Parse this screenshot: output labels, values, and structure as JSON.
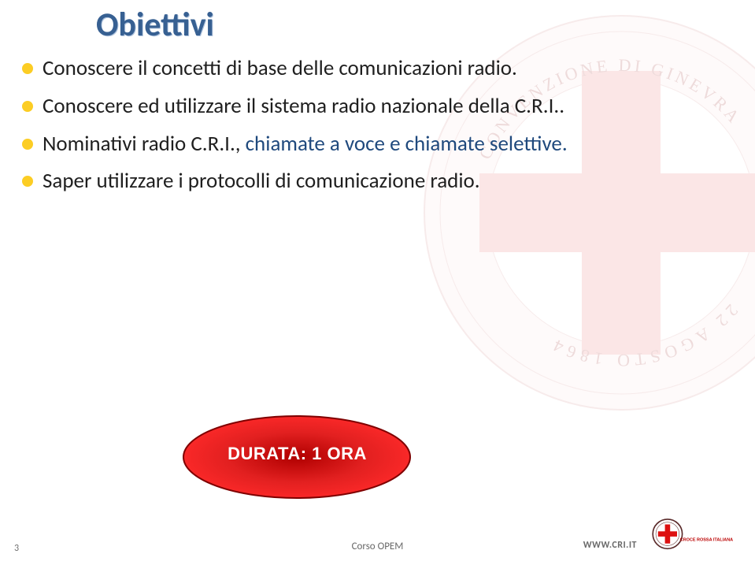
{
  "title": "Obiettivi",
  "title_color": "#376092",
  "bullets": [
    {
      "text": "Conoscere il concetti di base delle comunicazioni radio.",
      "marker_color": "#fccd24"
    },
    {
      "text": "Conoscere ed utilizzare il sistema radio nazionale della C.R.I..",
      "marker_color": "#fccd24"
    },
    {
      "prefix": "Nominativi radio C.R.I., ",
      "blue_text": "chiamate a voce e chiamate selettive.",
      "marker_color": "#fccd24"
    },
    {
      "text": "Saper utilizzare i protocolli di comunicazione radio.",
      "marker_color": "#fccd24"
    }
  ],
  "callout": {
    "text": "DURATA: 1 ORA",
    "fill_outer": "#ff0000",
    "fill_mid": "#e92b2b",
    "fill_inner": "#c00000",
    "stroke": "#7f0000"
  },
  "footer": {
    "page_number": "3",
    "center_text": "Corso OPEM",
    "url": "WWW.CRI.IT",
    "brand": "CROCE ROSSA ITALIANA"
  },
  "seal": {
    "ring_fill": "#f7d9d9",
    "ring_stroke": "#c98a8a",
    "cross_fill": "#f4baba",
    "text_top": "CONVENZIONE DI GINEVRA",
    "text_bottom": "22 AGOSTO 1864",
    "center_deco": "#e7a1a1"
  }
}
